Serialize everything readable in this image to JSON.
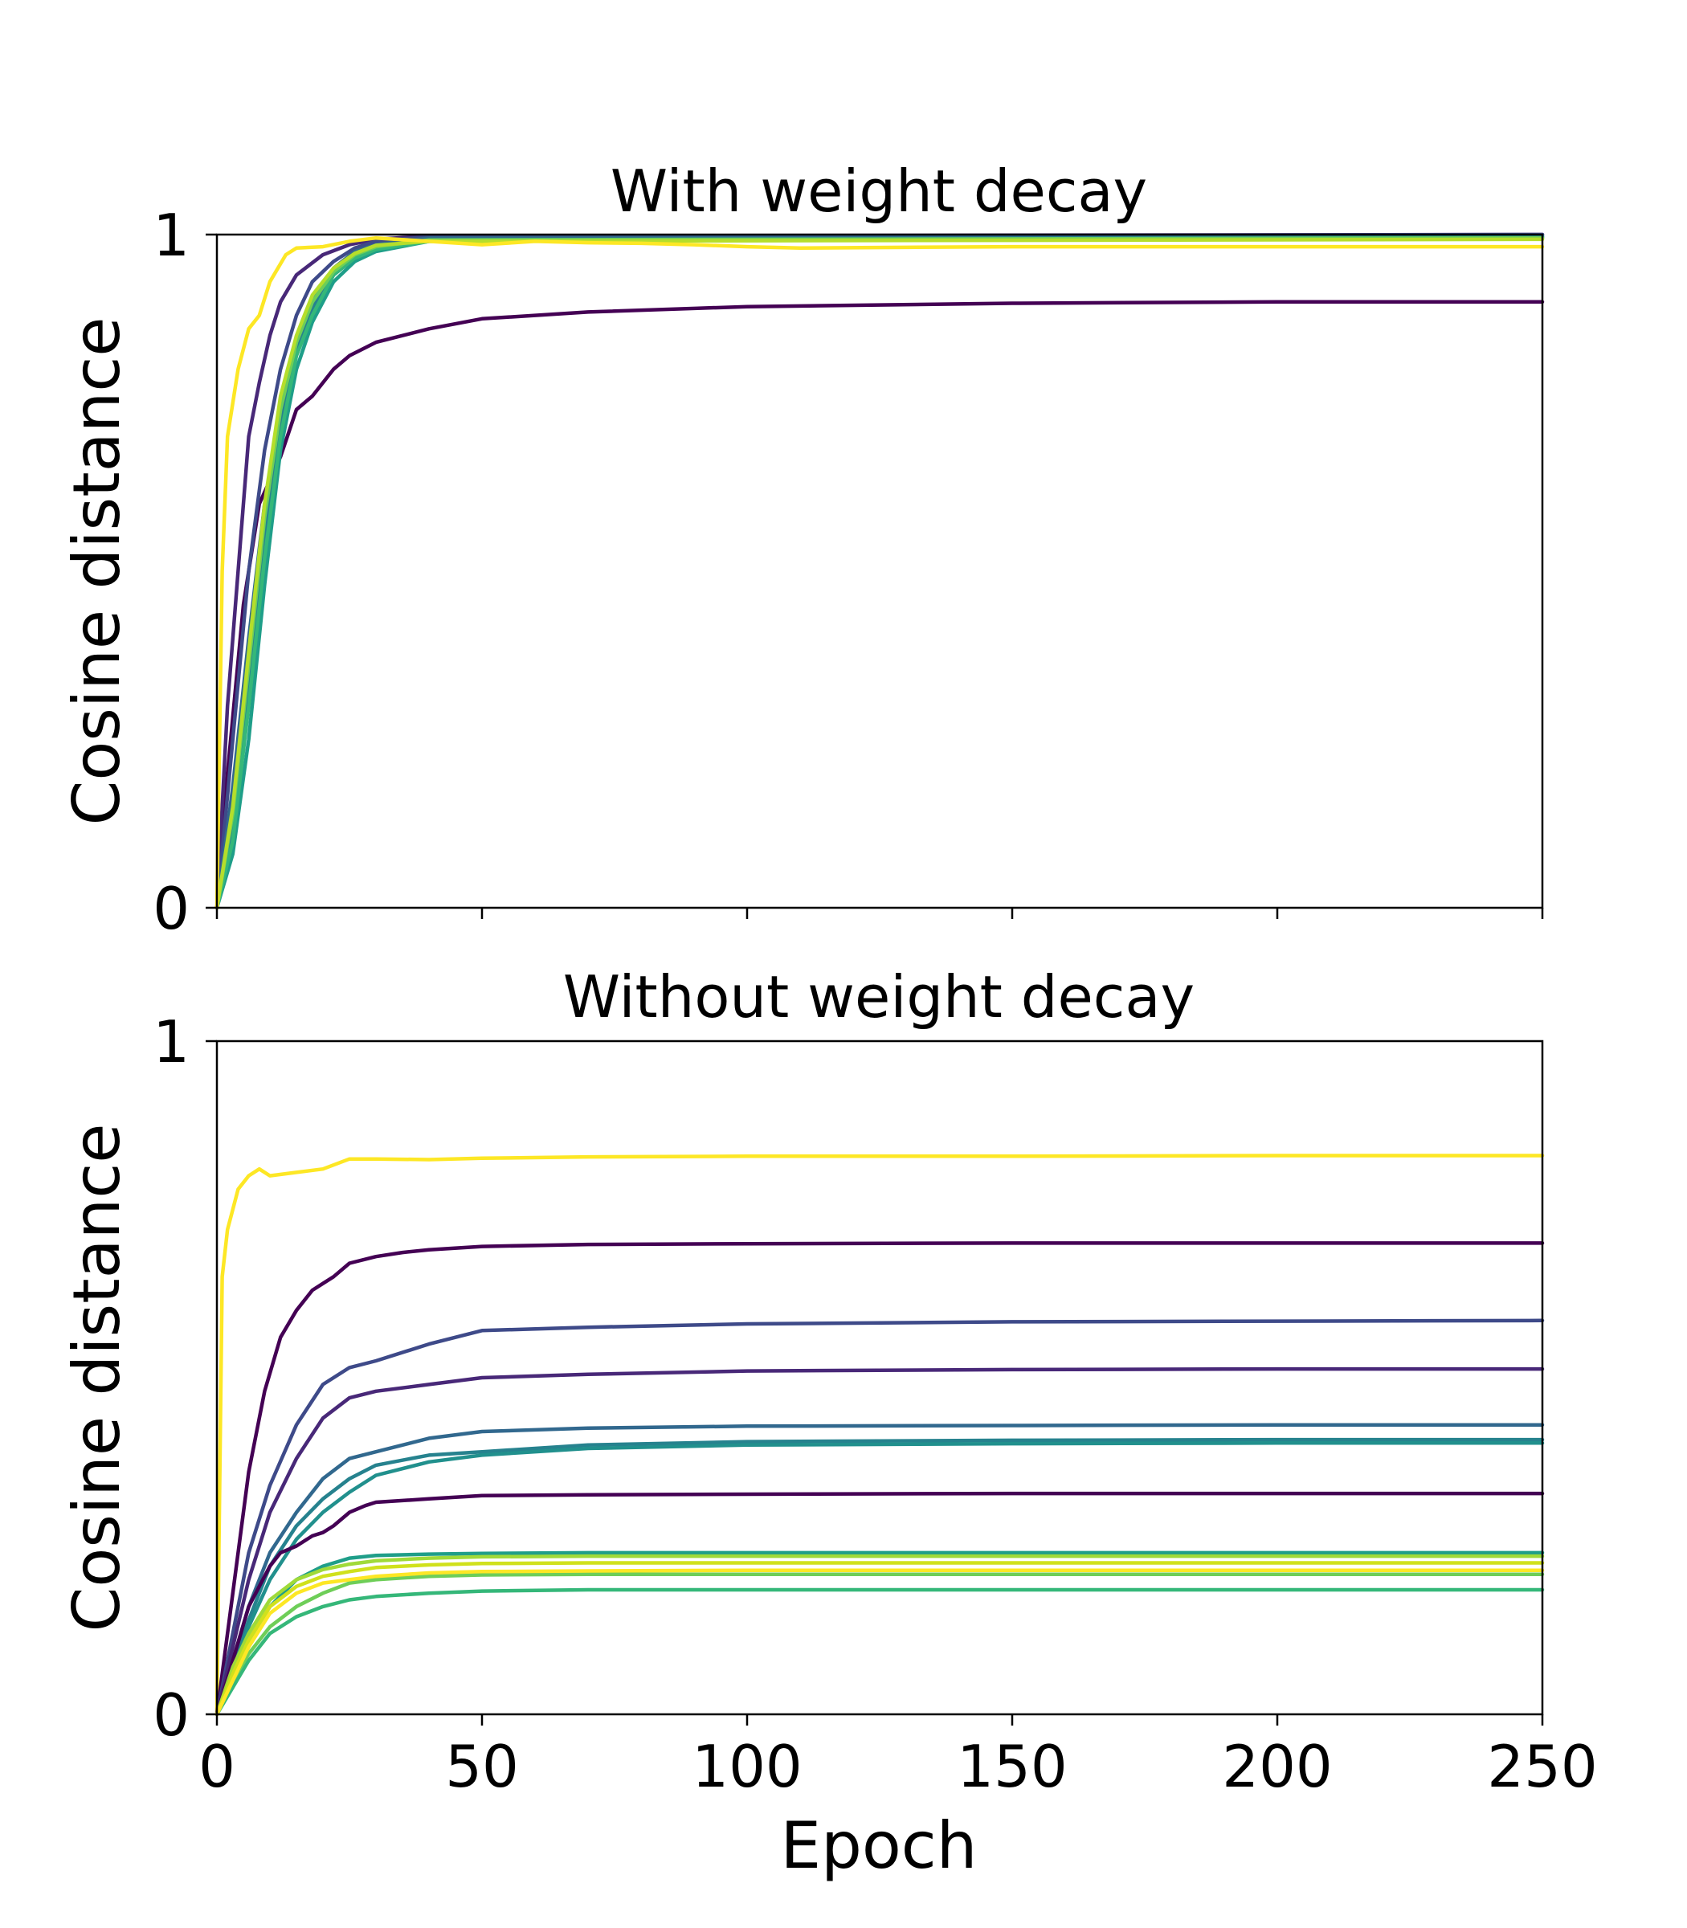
{
  "chart_data": [
    {
      "type": "line",
      "title": "With weight decay",
      "ylabel": "Cosine distance",
      "xlabel": "",
      "xlim": [
        0,
        250
      ],
      "ylim": [
        0,
        1
      ],
      "xticks": [
        0,
        50,
        100,
        150,
        200,
        250
      ],
      "xtick_labels_visible": false,
      "yticks": [
        "0",
        "1"
      ],
      "grid": false,
      "series": [
        {
          "color": "#440154",
          "x": [
            0,
            2,
            5,
            8,
            12,
            15,
            18,
            22,
            25,
            30,
            40,
            50,
            70,
            100,
            150,
            200,
            250
          ],
          "y": [
            0,
            0.2,
            0.45,
            0.6,
            0.67,
            0.74,
            0.76,
            0.8,
            0.82,
            0.84,
            0.86,
            0.875,
            0.885,
            0.893,
            0.898,
            0.9,
            0.9
          ]
        },
        {
          "color": "#482878",
          "x": [
            0,
            2,
            4,
            6,
            8,
            10,
            12,
            15,
            20,
            25,
            30,
            40,
            250
          ],
          "y": [
            0,
            0.3,
            0.5,
            0.7,
            0.78,
            0.85,
            0.9,
            0.94,
            0.97,
            0.985,
            0.993,
            0.998,
            1.0
          ]
        },
        {
          "color": "#3e4a89",
          "x": [
            0,
            3,
            6,
            9,
            12,
            15,
            18,
            22,
            26,
            30,
            40,
            250
          ],
          "y": [
            0,
            0.25,
            0.5,
            0.68,
            0.8,
            0.88,
            0.93,
            0.96,
            0.98,
            0.99,
            0.997,
            1.0
          ]
        },
        {
          "color": "#31688e",
          "x": [
            0,
            3,
            6,
            9,
            12,
            15,
            18,
            22,
            26,
            30,
            40,
            250
          ],
          "y": [
            0,
            0.18,
            0.4,
            0.6,
            0.74,
            0.84,
            0.9,
            0.95,
            0.975,
            0.985,
            0.995,
            0.998
          ]
        },
        {
          "color": "#26828e",
          "x": [
            0,
            3,
            6,
            9,
            12,
            15,
            18,
            22,
            26,
            30,
            40,
            250
          ],
          "y": [
            0,
            0.12,
            0.32,
            0.55,
            0.72,
            0.83,
            0.89,
            0.94,
            0.965,
            0.98,
            0.992,
            0.997
          ]
        },
        {
          "color": "#1f9e89",
          "x": [
            0,
            3,
            6,
            9,
            12,
            15,
            18,
            22,
            26,
            30,
            40,
            250
          ],
          "y": [
            0,
            0.08,
            0.25,
            0.48,
            0.68,
            0.8,
            0.87,
            0.93,
            0.96,
            0.975,
            0.99,
            0.996
          ]
        },
        {
          "color": "#35b779",
          "x": [
            0,
            3,
            6,
            9,
            12,
            15,
            18,
            22,
            26,
            30,
            40,
            250
          ],
          "y": [
            0,
            0.1,
            0.3,
            0.52,
            0.7,
            0.82,
            0.88,
            0.94,
            0.965,
            0.978,
            0.99,
            0.995
          ]
        },
        {
          "color": "#6ece58",
          "x": [
            0,
            3,
            6,
            9,
            12,
            15,
            18,
            22,
            26,
            30,
            40,
            250
          ],
          "y": [
            0,
            0.14,
            0.36,
            0.58,
            0.74,
            0.84,
            0.9,
            0.945,
            0.97,
            0.982,
            0.992,
            0.995
          ]
        },
        {
          "color": "#b5de2b",
          "x": [
            0,
            3,
            6,
            9,
            12,
            15,
            18,
            22,
            26,
            30,
            40,
            250
          ],
          "y": [
            0,
            0.15,
            0.38,
            0.6,
            0.76,
            0.85,
            0.91,
            0.95,
            0.972,
            0.984,
            0.99,
            0.993
          ]
        },
        {
          "color": "#fde725",
          "x": [
            0,
            1,
            2,
            4,
            6,
            8,
            10,
            13,
            15,
            20,
            25,
            30,
            40,
            50,
            60,
            70,
            80,
            90,
            100,
            110,
            130,
            150,
            200,
            250
          ],
          "y": [
            0,
            0.5,
            0.7,
            0.8,
            0.86,
            0.88,
            0.93,
            0.97,
            0.98,
            0.982,
            0.99,
            0.995,
            0.99,
            0.985,
            0.99,
            0.988,
            0.987,
            0.985,
            0.982,
            0.98,
            0.981,
            0.982,
            0.982,
            0.982
          ]
        }
      ]
    },
    {
      "type": "line",
      "title": "Without weight decay",
      "ylabel": "Cosine distance",
      "xlabel": "Epoch",
      "xlim": [
        0,
        250
      ],
      "ylim": [
        0,
        1
      ],
      "xticks": [
        0,
        50,
        100,
        150,
        200,
        250
      ],
      "xtick_labels_visible": true,
      "yticks": [
        "0",
        "1"
      ],
      "grid": false,
      "series": [
        {
          "color": "#fde725",
          "x": [
            0,
            1,
            2,
            4,
            6,
            8,
            10,
            15,
            20,
            25,
            30,
            40,
            50,
            70,
            100,
            150,
            200,
            250
          ],
          "y": [
            0,
            0.65,
            0.72,
            0.78,
            0.8,
            0.81,
            0.8,
            0.805,
            0.81,
            0.825,
            0.825,
            0.824,
            0.826,
            0.828,
            0.829,
            0.829,
            0.83,
            0.83
          ]
        },
        {
          "color": "#440154",
          "x": [
            0,
            3,
            6,
            9,
            12,
            15,
            18,
            20,
            22,
            25,
            30,
            35,
            40,
            50,
            70,
            100,
            150,
            200,
            250
          ],
          "y": [
            0,
            0.18,
            0.36,
            0.48,
            0.56,
            0.6,
            0.63,
            0.64,
            0.65,
            0.67,
            0.68,
            0.686,
            0.69,
            0.695,
            0.698,
            0.699,
            0.7,
            0.7,
            0.7
          ]
        },
        {
          "color": "#3e4a89",
          "x": [
            0,
            3,
            6,
            10,
            15,
            20,
            25,
            30,
            40,
            50,
            70,
            100,
            150,
            200,
            250
          ],
          "y": [
            0,
            0.12,
            0.24,
            0.34,
            0.43,
            0.49,
            0.515,
            0.525,
            0.55,
            0.57,
            0.575,
            0.58,
            0.583,
            0.584,
            0.585
          ]
        },
        {
          "color": "#482878",
          "x": [
            0,
            3,
            6,
            10,
            15,
            20,
            25,
            30,
            40,
            50,
            70,
            100,
            150,
            200,
            250
          ],
          "y": [
            0,
            0.1,
            0.2,
            0.3,
            0.38,
            0.44,
            0.47,
            0.48,
            0.49,
            0.5,
            0.505,
            0.51,
            0.512,
            0.513,
            0.513
          ]
        },
        {
          "color": "#31688e",
          "x": [
            0,
            3,
            6,
            10,
            15,
            20,
            25,
            30,
            40,
            50,
            70,
            100,
            150,
            200,
            250
          ],
          "y": [
            0,
            0.08,
            0.16,
            0.24,
            0.3,
            0.35,
            0.38,
            0.39,
            0.41,
            0.42,
            0.425,
            0.428,
            0.429,
            0.43,
            0.43
          ]
        },
        {
          "color": "#26828e",
          "x": [
            0,
            3,
            6,
            10,
            15,
            20,
            25,
            30,
            40,
            50,
            70,
            100,
            150,
            200,
            250
          ],
          "y": [
            0,
            0.07,
            0.14,
            0.22,
            0.28,
            0.32,
            0.35,
            0.37,
            0.385,
            0.39,
            0.4,
            0.405,
            0.407,
            0.408,
            0.408
          ]
        },
        {
          "color": "#21908d",
          "x": [
            0,
            3,
            6,
            10,
            15,
            20,
            25,
            30,
            40,
            50,
            70,
            100,
            150,
            200,
            250
          ],
          "y": [
            0,
            0.06,
            0.13,
            0.2,
            0.26,
            0.3,
            0.33,
            0.355,
            0.375,
            0.385,
            0.395,
            0.4,
            0.402,
            0.403,
            0.403
          ]
        },
        {
          "color": "#440154",
          "x": [
            0,
            3,
            6,
            10,
            12,
            15,
            18,
            20,
            22,
            25,
            28,
            30,
            40,
            50,
            70,
            100,
            150,
            200,
            250
          ],
          "y": [
            0,
            0.08,
            0.16,
            0.22,
            0.24,
            0.25,
            0.265,
            0.27,
            0.28,
            0.3,
            0.31,
            0.315,
            0.32,
            0.325,
            0.326,
            0.327,
            0.328,
            0.328,
            0.328
          ]
        },
        {
          "color": "#1f9e89",
          "x": [
            0,
            3,
            6,
            10,
            15,
            20,
            25,
            30,
            40,
            50,
            70,
            100,
            150,
            200,
            250
          ],
          "y": [
            0,
            0.06,
            0.11,
            0.16,
            0.2,
            0.22,
            0.232,
            0.236,
            0.238,
            0.239,
            0.24,
            0.24,
            0.24,
            0.24,
            0.24
          ]
        },
        {
          "color": "#35b779",
          "x": [
            0,
            3,
            6,
            10,
            15,
            20,
            25,
            30,
            40,
            50,
            70,
            100,
            150,
            200,
            250
          ],
          "y": [
            0,
            0.04,
            0.08,
            0.12,
            0.145,
            0.16,
            0.17,
            0.175,
            0.18,
            0.183,
            0.185,
            0.185,
            0.185,
            0.185,
            0.185
          ]
        },
        {
          "color": "#6ece58",
          "x": [
            0,
            3,
            6,
            10,
            15,
            20,
            25,
            30,
            40,
            50,
            70,
            100,
            150,
            200,
            250
          ],
          "y": [
            0,
            0.05,
            0.09,
            0.13,
            0.16,
            0.18,
            0.195,
            0.2,
            0.205,
            0.207,
            0.208,
            0.208,
            0.208,
            0.208,
            0.208
          ]
        },
        {
          "color": "#a0da39",
          "x": [
            0,
            3,
            6,
            10,
            15,
            20,
            25,
            30,
            40,
            50,
            70,
            100,
            150,
            200,
            250
          ],
          "y": [
            0,
            0.07,
            0.12,
            0.17,
            0.2,
            0.215,
            0.223,
            0.228,
            0.232,
            0.234,
            0.235,
            0.235,
            0.235,
            0.235,
            0.235
          ]
        },
        {
          "color": "#d0e11c",
          "x": [
            0,
            3,
            6,
            10,
            15,
            20,
            25,
            30,
            40,
            50,
            70,
            100,
            150,
            200,
            250
          ],
          "y": [
            0,
            0.06,
            0.11,
            0.16,
            0.19,
            0.205,
            0.212,
            0.218,
            0.222,
            0.224,
            0.225,
            0.225,
            0.225,
            0.225,
            0.225
          ]
        },
        {
          "color": "#fde725",
          "x": [
            0,
            3,
            6,
            10,
            15,
            20,
            25,
            30,
            40,
            50,
            70,
            100,
            150,
            200,
            250
          ],
          "y": [
            0,
            0.05,
            0.1,
            0.15,
            0.18,
            0.195,
            0.2,
            0.205,
            0.21,
            0.212,
            0.213,
            0.214,
            0.214,
            0.214,
            0.214
          ]
        }
      ]
    }
  ]
}
